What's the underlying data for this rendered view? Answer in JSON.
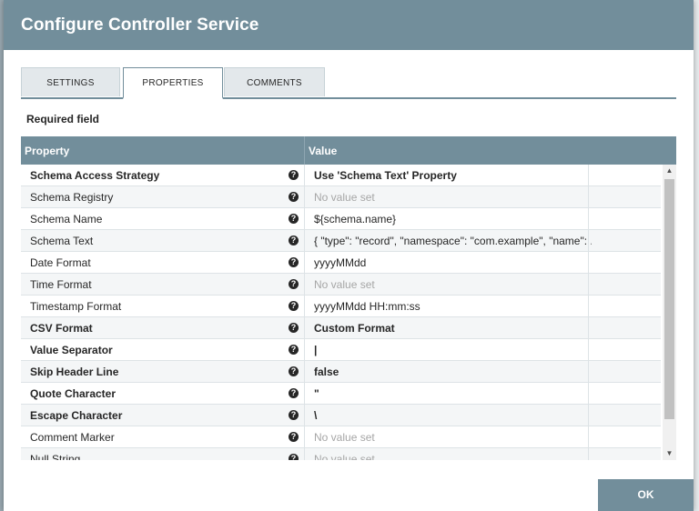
{
  "dialog": {
    "title": "Configure Controller Service"
  },
  "tabs": [
    {
      "label": "SETTINGS"
    },
    {
      "label": "PROPERTIES"
    },
    {
      "label": "COMMENTS"
    }
  ],
  "required_label": "Required field",
  "grid": {
    "columns": {
      "property": "Property",
      "value": "Value"
    },
    "help_glyph": "?",
    "rows": [
      {
        "property": "Schema Access Strategy",
        "value": "Use 'Schema Text' Property",
        "required": true,
        "empty": false
      },
      {
        "property": "Schema Registry",
        "value": "No value set",
        "required": false,
        "empty": true
      },
      {
        "property": "Schema Name",
        "value": "${schema.name}",
        "required": false,
        "empty": false
      },
      {
        "property": "Schema Text",
        "value": "{ \"type\": \"record\", \"namespace\": \"com.example\", \"name\": ...",
        "required": false,
        "empty": false
      },
      {
        "property": "Date Format",
        "value": "yyyyMMdd",
        "required": false,
        "empty": false
      },
      {
        "property": "Time Format",
        "value": "No value set",
        "required": false,
        "empty": true
      },
      {
        "property": "Timestamp Format",
        "value": "yyyyMMdd HH:mm:ss",
        "required": false,
        "empty": false
      },
      {
        "property": "CSV Format",
        "value": "Custom Format",
        "required": true,
        "empty": false
      },
      {
        "property": "Value Separator",
        "value": "|",
        "required": true,
        "empty": false
      },
      {
        "property": "Skip Header Line",
        "value": "false",
        "required": true,
        "empty": false
      },
      {
        "property": "Quote Character",
        "value": "\"",
        "required": true,
        "empty": false
      },
      {
        "property": "Escape Character",
        "value": "\\",
        "required": true,
        "empty": false
      },
      {
        "property": "Comment Marker",
        "value": "No value set",
        "required": false,
        "empty": true
      },
      {
        "property": "Null String",
        "value": "No value set",
        "required": false,
        "empty": true
      }
    ]
  },
  "scrollbar": {
    "up_glyph": "▲",
    "down_glyph": "▼"
  },
  "actions": {
    "ok_label": "OK"
  },
  "colors": {
    "header": "#728e9b",
    "accent": "#728e9b"
  }
}
